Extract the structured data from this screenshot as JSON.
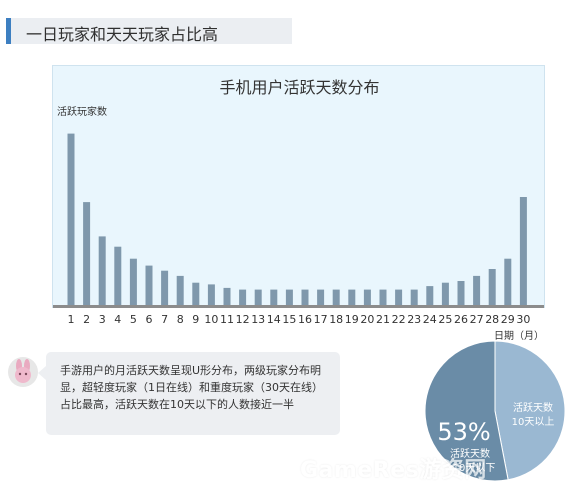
{
  "header": {
    "title": "一日玩家和天天玩家占比高"
  },
  "chart_data": {
    "type": "bar",
    "title": "手机用户活跃天数分布",
    "ylabel": "活跃玩家数",
    "xlabel": "日期（月）",
    "categories": [
      "1",
      "2",
      "3",
      "4",
      "5",
      "6",
      "7",
      "8",
      "9",
      "10",
      "11",
      "12",
      "13",
      "14",
      "15",
      "16",
      "17",
      "18",
      "19",
      "20",
      "21",
      "22",
      "23",
      "24",
      "25",
      "26",
      "27",
      "28",
      "29",
      "30"
    ],
    "values": [
      100,
      60,
      40,
      34,
      27,
      23,
      20,
      17,
      13,
      12,
      10,
      9,
      9,
      9,
      9,
      9,
      9,
      9,
      9,
      9,
      9,
      9,
      9,
      11,
      13,
      14,
      17,
      21,
      27,
      63
    ],
    "ylim": [
      0,
      105
    ],
    "bar_color": "#7f98ac",
    "axis_color": "#8c8c8c"
  },
  "bubble": {
    "text": "手游用户的月活跃天数呈现U形分布，两级玩家分布明显，超轻度玩家（1日在线）和重度玩家（30天在线）占比最高，活跃天数在10天以下的人数接近一半"
  },
  "pie": {
    "percent": "53%",
    "value": 53,
    "left_line1": "活跃天数",
    "left_line2": "10天以下",
    "right_line1": "活跃天数",
    "right_line2": "10天以上",
    "color_major": "#6a8ca7",
    "color_minor": "#9ab8d2"
  },
  "watermark": "GameRes游资网"
}
